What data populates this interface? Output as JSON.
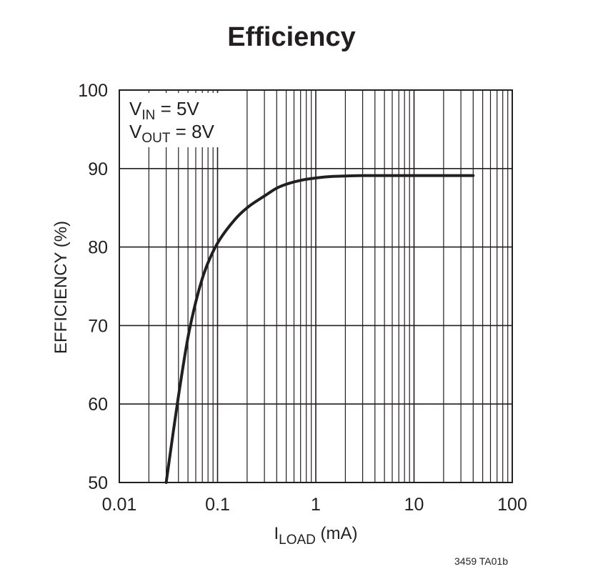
{
  "chart_data": {
    "type": "line",
    "title": "Efficiency",
    "xlabel": {
      "main": "I",
      "sub": "LOAD",
      "suffix": " (mA)"
    },
    "ylabel": "EFFICIENCY (%)",
    "x_scale": "log",
    "xlim": [
      0.01,
      100
    ],
    "ylim": [
      50,
      100
    ],
    "x_ticks": [
      0.01,
      0.1,
      1,
      10,
      100
    ],
    "x_tick_labels": [
      "0.01",
      "0.1",
      "1",
      "10",
      "100"
    ],
    "y_ticks": [
      50,
      60,
      70,
      80,
      90,
      100
    ],
    "y_tick_labels": [
      "50",
      "60",
      "70",
      "80",
      "90",
      "100"
    ],
    "grid": true,
    "annotations": [
      {
        "main": "V",
        "sub": "IN",
        "suffix": " = 5V"
      },
      {
        "main": "V",
        "sub": "OUT",
        "suffix": " = 8V"
      }
    ],
    "series": [
      {
        "name": "Efficiency",
        "x": [
          0.03,
          0.035,
          0.04,
          0.05,
          0.06,
          0.07,
          0.08,
          0.1,
          0.15,
          0.2,
          0.3,
          0.4,
          0.5,
          0.7,
          1,
          1.5,
          2,
          3,
          5,
          10,
          20,
          40
        ],
        "y": [
          50,
          56,
          61,
          68.5,
          73,
          76,
          78,
          80.5,
          83.5,
          85,
          86.5,
          87.5,
          88,
          88.5,
          88.8,
          89,
          89.05,
          89.1,
          89.1,
          89.1,
          89.1,
          89.1
        ]
      }
    ]
  },
  "figure_code": "3459 TA01b"
}
